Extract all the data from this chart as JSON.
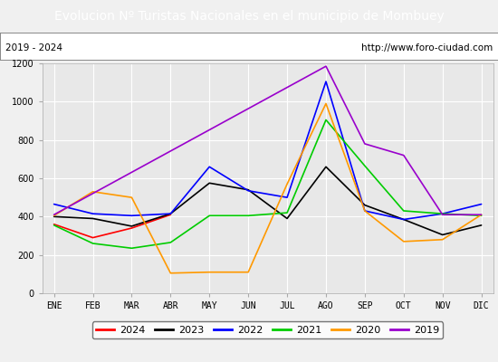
{
  "title": "Evolucion Nº Turistas Nacionales en el municipio de Mombuey",
  "subtitle_left": "2019 - 2024",
  "subtitle_right": "http://www.foro-ciudad.com",
  "x_labels": [
    "ENE",
    "FEB",
    "MAR",
    "ABR",
    "MAY",
    "JUN",
    "JUL",
    "AGO",
    "SEP",
    "OCT",
    "NOV",
    "DIC"
  ],
  "ylim": [
    0,
    1200
  ],
  "yticks": [
    0,
    200,
    400,
    600,
    800,
    1000,
    1200
  ],
  "series": {
    "2024": {
      "color": "#ff0000",
      "data": [
        360,
        290,
        340,
        410,
        null,
        null,
        null,
        null,
        null,
        null,
        null,
        null
      ]
    },
    "2023": {
      "color": "#000000",
      "data": [
        400,
        390,
        350,
        415,
        575,
        540,
        390,
        660,
        460,
        385,
        305,
        355
      ]
    },
    "2022": {
      "color": "#0000ff",
      "data": [
        465,
        415,
        405,
        415,
        660,
        535,
        500,
        1105,
        430,
        385,
        415,
        465
      ]
    },
    "2021": {
      "color": "#00cc00",
      "data": [
        355,
        260,
        235,
        265,
        405,
        405,
        420,
        905,
        665,
        430,
        415,
        405
      ]
    },
    "2020": {
      "color": "#ff9900",
      "data": [
        405,
        530,
        500,
        105,
        110,
        110,
        570,
        990,
        430,
        270,
        280,
        410
      ]
    },
    "2019": {
      "color": "#9900cc",
      "data": [
        410,
        null,
        null,
        null,
        null,
        null,
        null,
        1185,
        780,
        720,
        410,
        410
      ]
    }
  },
  "title_bg_color": "#4472c4",
  "title_font_color": "#ffffff",
  "plot_bg_color": "#e8e8e8",
  "fig_bg_color": "#f0f0f0",
  "grid_color": "#ffffff",
  "title_fontsize": 10,
  "subtitle_fontsize": 7.5,
  "legend_fontsize": 8,
  "axis_fontsize": 7,
  "legend_years": [
    "2024",
    "2023",
    "2022",
    "2021",
    "2020",
    "2019"
  ]
}
